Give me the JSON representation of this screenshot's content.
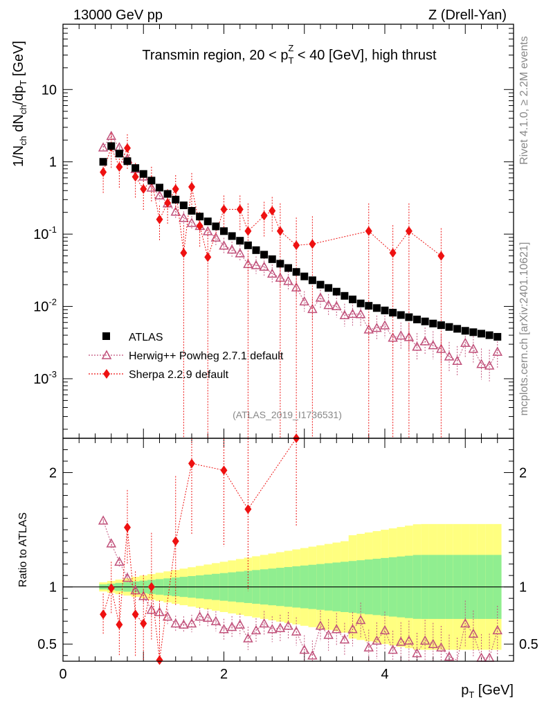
{
  "header": {
    "left": "13000 GeV pp",
    "right": "Z (Drell-Yan)"
  },
  "side": {
    "rivet": "Rivet 4.1.0, ≥ 2.2M events",
    "mcplots": "mcplots.cern.ch [arXiv:2401.10621]"
  },
  "chart_data": {
    "type": "scatter",
    "title": "Transmin region, 20 < p_T^Z < 40 [GeV], high thrust",
    "analysis_label": "(ATLAS_2019_I1736531)",
    "xlabel": "p_T [GeV]",
    "ylabel_main": "1/N_ch dN_ch/dp_T [GeV]",
    "ylabel_ratio": "Ratio to ATLAS",
    "xlim": [
      0,
      5.6
    ],
    "ylim_main": [
      0.00015,
      80
    ],
    "ylim_ratio": [
      0.35,
      2.3
    ],
    "yscale_main": "log",
    "x_ticks": [
      "0",
      "2",
      "4"
    ],
    "y_ticks_main": [
      "10",
      "1",
      "10^-1",
      "10^-2",
      "10^-3"
    ],
    "y_ticks_ratio": [
      "0.5",
      "1",
      "2"
    ],
    "legend": {
      "placement": "lower-left",
      "entries": [
        "ATLAS",
        "Herwig++ Powheg 2.7.1 default",
        "Sherpa 2.2.9 default"
      ]
    },
    "x": [
      0.5,
      0.6,
      0.7,
      0.8,
      0.9,
      1.0,
      1.1,
      1.2,
      1.3,
      1.4,
      1.5,
      1.6,
      1.7,
      1.8,
      1.9,
      2.0,
      2.1,
      2.2,
      2.3,
      2.4,
      2.5,
      2.6,
      2.7,
      2.8,
      2.9,
      3.0,
      3.1,
      3.2,
      3.3,
      3.4,
      3.5,
      3.6,
      3.7,
      3.8,
      3.9,
      4.0,
      4.1,
      4.2,
      4.3,
      4.4,
      4.5,
      4.6,
      4.7,
      4.8,
      4.9,
      5.0,
      5.1,
      5.2,
      5.3,
      5.4
    ],
    "series": [
      {
        "name": "ATLAS",
        "color": "#000000",
        "marker": "square",
        "values": [
          1.0,
          1.65,
          1.3,
          1.02,
          0.82,
          0.68,
          0.55,
          0.44,
          0.36,
          0.3,
          0.25,
          0.21,
          0.175,
          0.15,
          0.128,
          0.11,
          0.094,
          0.081,
          0.07,
          0.06,
          0.052,
          0.045,
          0.039,
          0.034,
          0.03,
          0.026,
          0.023,
          0.02,
          0.018,
          0.016,
          0.014,
          0.0125,
          0.011,
          0.0102,
          0.0095,
          0.0088,
          0.0082,
          0.0076,
          0.0071,
          0.0066,
          0.0062,
          0.0058,
          0.0055,
          0.0052,
          0.0049,
          0.0046,
          0.0044,
          0.0042,
          0.004,
          0.0038
        ]
      },
      {
        "name": "Herwig++ Powheg 2.7.1 default",
        "color": "#c0507a",
        "marker": "open-triangle",
        "ratio": [
          1.58,
          1.38,
          1.22,
          1.08,
          0.97,
          0.92,
          0.8,
          0.78,
          0.74,
          0.68,
          0.67,
          0.68,
          0.74,
          0.73,
          0.7,
          0.63,
          0.65,
          0.67,
          0.55,
          0.62,
          0.68,
          0.63,
          0.64,
          0.66,
          0.61,
          0.45,
          0.4,
          0.66,
          0.58,
          0.63,
          0.54,
          0.63,
          0.71,
          0.47,
          0.53,
          0.62,
          0.45,
          0.52,
          0.53,
          0.42,
          0.53,
          0.5,
          0.47,
          0.39,
          0.36,
          0.68,
          0.59,
          0.38,
          0.38,
          0.62
        ]
      },
      {
        "name": "Sherpa 2.2.9 default",
        "color": "#ee1111",
        "marker": "filled-diamond",
        "points": [
          [
            0.5,
            0.72
          ],
          [
            0.6,
            1.6
          ],
          [
            0.7,
            0.85
          ],
          [
            0.8,
            1.55
          ],
          [
            0.9,
            0.62
          ],
          [
            1.0,
            0.42
          ],
          [
            1.1,
            0.55
          ],
          [
            1.2,
            0.16
          ],
          [
            1.3,
            0.27
          ],
          [
            1.4,
            0.42
          ],
          [
            1.5,
            0.055
          ],
          [
            1.6,
            0.45
          ],
          [
            1.7,
            0.13
          ],
          [
            1.8,
            0.048
          ],
          [
            2.0,
            0.22
          ],
          [
            2.2,
            0.22
          ],
          [
            2.3,
            0.11
          ],
          [
            2.5,
            0.18
          ],
          [
            2.6,
            0.21
          ],
          [
            2.7,
            0.11
          ],
          [
            2.9,
            0.07
          ],
          [
            3.1,
            0.073
          ],
          [
            3.8,
            0.11
          ],
          [
            4.1,
            0.055
          ],
          [
            4.3,
            0.11
          ],
          [
            4.7,
            0.05
          ]
        ],
        "ratio_points": [
          [
            0.5,
            0.76
          ],
          [
            0.6,
            0.99
          ],
          [
            0.7,
            0.67
          ],
          [
            0.8,
            1.52
          ],
          [
            0.9,
            0.76
          ],
          [
            1.0,
            0.68
          ],
          [
            1.1,
            1.0
          ],
          [
            1.2,
            0.36
          ],
          [
            1.4,
            1.4
          ],
          [
            1.6,
            2.08
          ],
          [
            2.0,
            2.02
          ],
          [
            2.3,
            1.68
          ],
          [
            2.9,
            2.3
          ]
        ]
      }
    ]
  }
}
